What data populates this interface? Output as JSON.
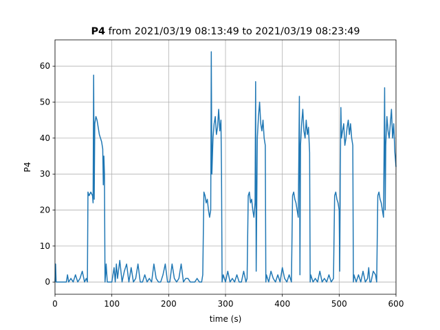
{
  "chart_data": {
    "type": "line",
    "title_bold": "P4",
    "title": "from 2021/03/19 08:13:49 to 2021/03/19 08:23:49",
    "x_label": "time (s)",
    "y_label": "P4",
    "xlim": [
      0,
      600
    ],
    "ylim": [
      -3.4,
      67.3
    ],
    "xticks": [
      0,
      100,
      200,
      300,
      400,
      500,
      600
    ],
    "yticks": [
      0,
      10,
      20,
      30,
      40,
      50,
      60
    ],
    "grid": true,
    "series": [
      {
        "name": "P4",
        "color": "#1f77b4",
        "x": [
          0,
          1,
          2,
          5,
          10,
          15,
          20,
          22,
          24,
          28,
          32,
          36,
          40,
          44,
          48,
          52,
          55,
          57,
          58,
          60,
          63,
          66,
          67,
          68,
          69,
          70,
          72,
          74,
          76,
          78,
          80,
          82,
          84,
          85,
          86,
          87,
          88,
          89,
          90,
          92,
          95,
          100,
          104,
          106,
          108,
          110,
          114,
          118,
          122,
          126,
          130,
          134,
          138,
          142,
          146,
          150,
          154,
          158,
          162,
          166,
          170,
          174,
          178,
          182,
          186,
          190,
          194,
          198,
          202,
          206,
          210,
          214,
          218,
          222,
          226,
          230,
          234,
          238,
          242,
          246,
          250,
          254,
          258,
          260,
          262,
          264,
          266,
          268,
          270,
          272,
          274,
          275,
          276,
          278,
          280,
          282,
          284,
          286,
          288,
          290,
          292,
          293,
          294,
          296,
          300,
          304,
          308,
          312,
          316,
          320,
          324,
          328,
          332,
          336,
          338,
          340,
          342,
          344,
          346,
          348,
          350,
          352,
          353,
          354,
          356,
          358,
          360,
          362,
          364,
          366,
          368,
          370,
          371,
          372,
          376,
          380,
          384,
          388,
          392,
          396,
          400,
          404,
          408,
          412,
          416,
          418,
          420,
          422,
          424,
          426,
          428,
          430,
          431,
          432,
          434,
          436,
          438,
          440,
          442,
          444,
          446,
          448,
          449,
          450,
          454,
          458,
          462,
          466,
          470,
          474,
          478,
          482,
          486,
          490,
          492,
          494,
          496,
          498,
          500,
          501,
          502,
          503,
          504,
          506,
          508,
          510,
          512,
          514,
          516,
          518,
          520,
          522,
          524,
          525,
          526,
          530,
          534,
          538,
          542,
          546,
          550,
          552,
          554,
          556,
          560,
          564,
          566,
          568,
          570,
          572,
          574,
          576,
          578,
          580,
          581,
          582,
          584,
          586,
          588,
          590,
          592,
          594,
          596,
          598,
          600
        ],
        "values": [
          0,
          5,
          0,
          0,
          0,
          0,
          0,
          2,
          0,
          1,
          0,
          2,
          0,
          1,
          3,
          0,
          1,
          0,
          25,
          24,
          25,
          24,
          22,
          57.5,
          23,
          44,
          46,
          45,
          43,
          41,
          40,
          39,
          37,
          27,
          35,
          30,
          0,
          2,
          5,
          0,
          0,
          0,
          4,
          0,
          5,
          1,
          6,
          0,
          3,
          5,
          0,
          4,
          0,
          1,
          5,
          0,
          0,
          2,
          0,
          1,
          0,
          5,
          1,
          0,
          0,
          2,
          5,
          0,
          0,
          5,
          1,
          0,
          1,
          5,
          0,
          1,
          1,
          0,
          0,
          0,
          1,
          0,
          0,
          2,
          25,
          24,
          22,
          23,
          20,
          18,
          20,
          64,
          30,
          40,
          44,
          46,
          41,
          43,
          48,
          42,
          45,
          30,
          0,
          2,
          0,
          3,
          0,
          1,
          0,
          2,
          0,
          0,
          3,
          0,
          1,
          24,
          25,
          22,
          23,
          20,
          18,
          22,
          55.7,
          3,
          40,
          46,
          50,
          44,
          42,
          45,
          40,
          38,
          0,
          2,
          0,
          3,
          1,
          0,
          2,
          0,
          4,
          1,
          0,
          2,
          0,
          24,
          25,
          23,
          22,
          20,
          18,
          51.6,
          2,
          38,
          44,
          48,
          42,
          40,
          45,
          41,
          43,
          36,
          0,
          2,
          0,
          1,
          0,
          3,
          0,
          1,
          0,
          2,
          0,
          1,
          24,
          25,
          23,
          22,
          20,
          3,
          30,
          48.5,
          40,
          42,
          44,
          38,
          40,
          43,
          45,
          41,
          44,
          40,
          38,
          0,
          2,
          0,
          2,
          0,
          3,
          0,
          1,
          4,
          0,
          0,
          3,
          2,
          0,
          24,
          25,
          23,
          22,
          20,
          18,
          54,
          20,
          38,
          46,
          42,
          40,
          44,
          48,
          40,
          44,
          36,
          32
        ]
      }
    ]
  }
}
